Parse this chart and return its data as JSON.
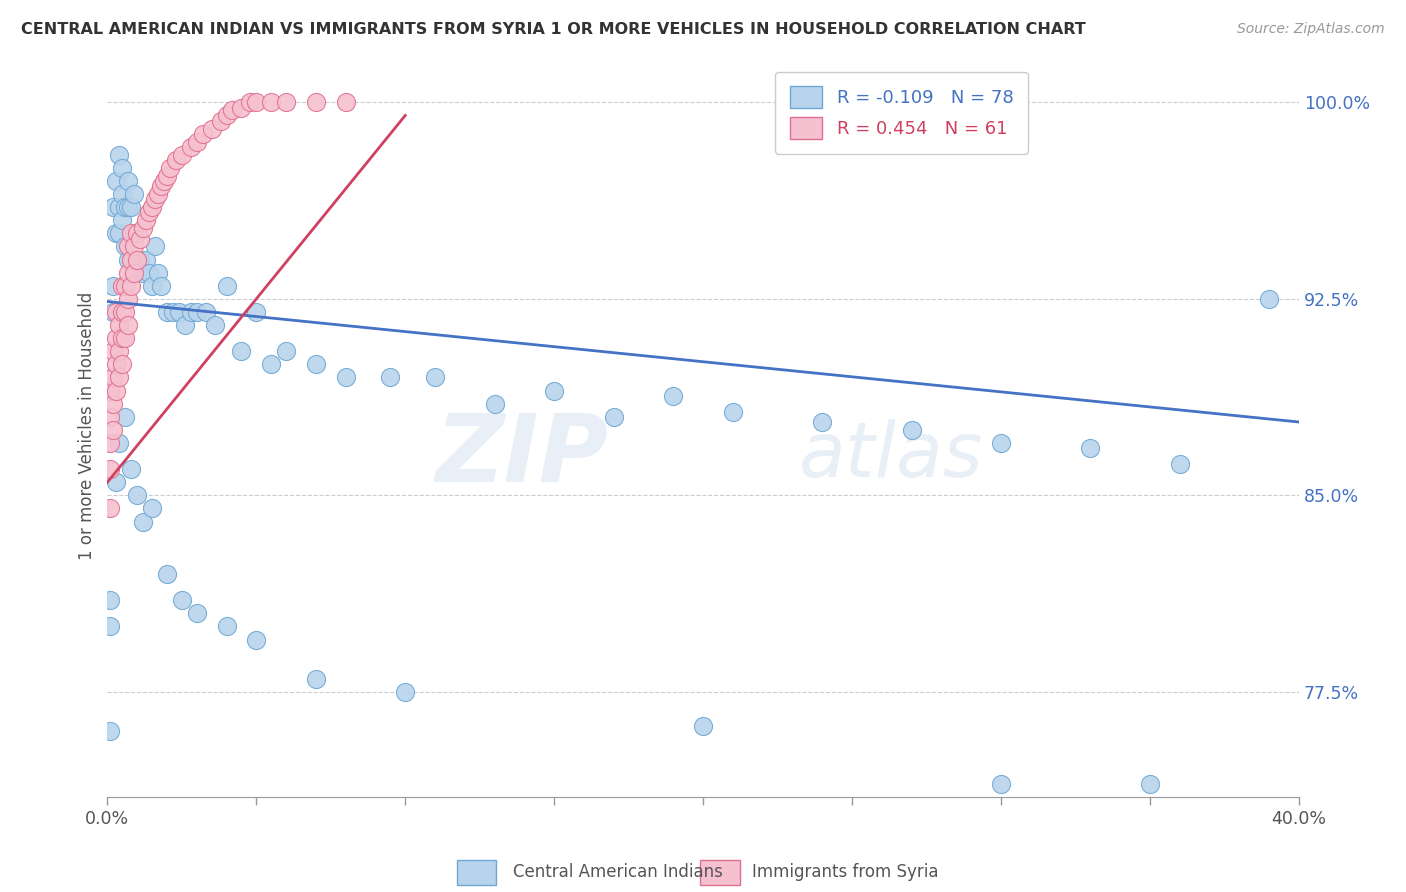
{
  "title": "CENTRAL AMERICAN INDIAN VS IMMIGRANTS FROM SYRIA 1 OR MORE VEHICLES IN HOUSEHOLD CORRELATION CHART",
  "source": "Source: ZipAtlas.com",
  "ylabel": "1 or more Vehicles in Household",
  "xmin": 0.0,
  "xmax": 0.4,
  "ymin": 0.735,
  "ymax": 1.018,
  "blue_R": -0.109,
  "blue_N": 78,
  "pink_R": 0.454,
  "pink_N": 61,
  "blue_color": "#b8d4ec",
  "blue_edge": "#6fa8d4",
  "pink_color": "#f5c0cf",
  "pink_edge": "#e07090",
  "blue_line_color": "#4472c4",
  "pink_line_color": "#d04060",
  "legend_blue_label": "Central American Indians",
  "legend_pink_label": "Immigrants from Syria",
  "watermark": "ZIPatlas",
  "ytick_vals": [
    0.775,
    0.85,
    0.925,
    1.0
  ],
  "ytick_labels": [
    "77.5%",
    "85.0%",
    "92.5%",
    "100.0%"
  ],
  "blue_trend_x": [
    0.0,
    0.4
  ],
  "blue_trend_y": [
    0.924,
    0.878
  ],
  "pink_trend_x": [
    0.0,
    0.1
  ],
  "pink_trend_y": [
    0.855,
    0.995
  ],
  "blue_pts_x": [
    0.001,
    0.001,
    0.001,
    0.002,
    0.002,
    0.002,
    0.003,
    0.003,
    0.004,
    0.004,
    0.004,
    0.005,
    0.005,
    0.005,
    0.006,
    0.006,
    0.007,
    0.007,
    0.007,
    0.008,
    0.008,
    0.009,
    0.009,
    0.01,
    0.01,
    0.011,
    0.012,
    0.013,
    0.014,
    0.015,
    0.016,
    0.017,
    0.018,
    0.02,
    0.022,
    0.024,
    0.026,
    0.028,
    0.03,
    0.033,
    0.036,
    0.04,
    0.045,
    0.05,
    0.055,
    0.06,
    0.07,
    0.08,
    0.095,
    0.11,
    0.13,
    0.15,
    0.17,
    0.19,
    0.21,
    0.24,
    0.27,
    0.3,
    0.33,
    0.36,
    0.003,
    0.004,
    0.006,
    0.008,
    0.01,
    0.012,
    0.015,
    0.02,
    0.025,
    0.03,
    0.04,
    0.05,
    0.07,
    0.1,
    0.2,
    0.3,
    0.35,
    0.39
  ],
  "blue_pts_y": [
    0.8,
    0.76,
    0.81,
    0.92,
    0.93,
    0.96,
    0.95,
    0.97,
    0.95,
    0.96,
    0.98,
    0.955,
    0.965,
    0.975,
    0.945,
    0.96,
    0.94,
    0.96,
    0.97,
    0.94,
    0.96,
    0.935,
    0.965,
    0.94,
    0.95,
    0.94,
    0.935,
    0.94,
    0.935,
    0.93,
    0.945,
    0.935,
    0.93,
    0.92,
    0.92,
    0.92,
    0.915,
    0.92,
    0.92,
    0.92,
    0.915,
    0.93,
    0.905,
    0.92,
    0.9,
    0.905,
    0.9,
    0.895,
    0.895,
    0.895,
    0.885,
    0.89,
    0.88,
    0.888,
    0.882,
    0.878,
    0.875,
    0.87,
    0.868,
    0.862,
    0.855,
    0.87,
    0.88,
    0.86,
    0.85,
    0.84,
    0.845,
    0.82,
    0.81,
    0.805,
    0.8,
    0.795,
    0.78,
    0.775,
    0.762,
    0.74,
    0.74,
    0.925
  ],
  "pink_pts_x": [
    0.001,
    0.001,
    0.001,
    0.001,
    0.002,
    0.002,
    0.002,
    0.002,
    0.003,
    0.003,
    0.003,
    0.003,
    0.004,
    0.004,
    0.004,
    0.005,
    0.005,
    0.005,
    0.005,
    0.006,
    0.006,
    0.006,
    0.007,
    0.007,
    0.007,
    0.007,
    0.008,
    0.008,
    0.008,
    0.009,
    0.009,
    0.01,
    0.01,
    0.011,
    0.012,
    0.013,
    0.014,
    0.015,
    0.016,
    0.017,
    0.018,
    0.019,
    0.02,
    0.021,
    0.023,
    0.025,
    0.028,
    0.03,
    0.032,
    0.035,
    0.038,
    0.04,
    0.042,
    0.045,
    0.048,
    0.05,
    0.055,
    0.06,
    0.07,
    0.08,
    0.001
  ],
  "pink_pts_y": [
    0.86,
    0.87,
    0.88,
    0.89,
    0.875,
    0.885,
    0.895,
    0.905,
    0.89,
    0.9,
    0.91,
    0.92,
    0.895,
    0.905,
    0.915,
    0.9,
    0.91,
    0.92,
    0.93,
    0.91,
    0.92,
    0.93,
    0.915,
    0.925,
    0.935,
    0.945,
    0.93,
    0.94,
    0.95,
    0.935,
    0.945,
    0.94,
    0.95,
    0.948,
    0.952,
    0.955,
    0.958,
    0.96,
    0.963,
    0.965,
    0.968,
    0.97,
    0.972,
    0.975,
    0.978,
    0.98,
    0.983,
    0.985,
    0.988,
    0.99,
    0.993,
    0.995,
    0.997,
    0.998,
    1.0,
    1.0,
    1.0,
    1.0,
    1.0,
    1.0,
    0.845
  ]
}
